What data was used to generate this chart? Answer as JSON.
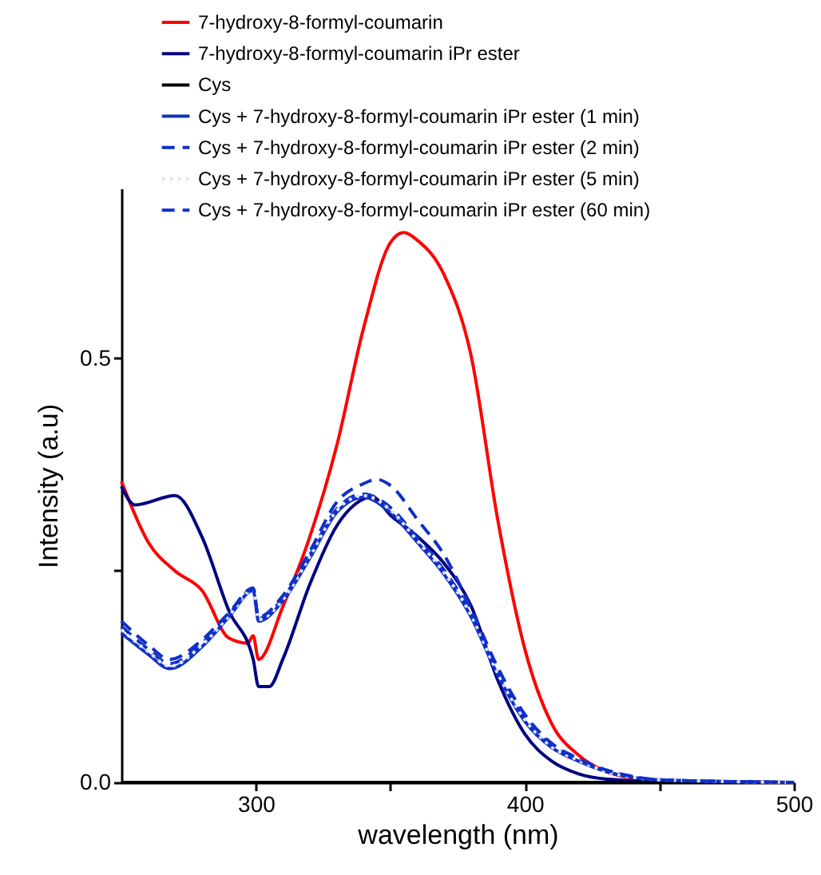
{
  "chart_data": {
    "type": "line",
    "xlabel": "wavelength (nm)",
    "ylabel": "Intensity (a.u)",
    "xlim": [
      250,
      500
    ],
    "ylim": [
      0,
      0.7
    ],
    "xticks": [
      300,
      {
        "value": 350,
        "label": null
      },
      400,
      {
        "value": 450,
        "label": null
      },
      500
    ],
    "yticks": [
      {
        "value": 0,
        "label": "0.0"
      },
      {
        "value": 0.25,
        "label": null
      },
      {
        "value": 0.5,
        "label": "0.5"
      }
    ],
    "grid": false,
    "legend": "top",
    "series": [
      {
        "name": "7-hydroxy-8-formyl-coumarin",
        "color": "#ff0000",
        "line_style": "solid",
        "x": [
          250,
          260,
          270,
          280,
          290,
          297,
          299,
          301,
          310,
          320,
          330,
          340,
          350,
          355,
          360,
          370,
          380,
          390,
          400,
          410,
          420,
          430,
          440,
          450,
          500
        ],
        "values": [
          0.355,
          0.283,
          0.249,
          0.226,
          0.17,
          0.164,
          0.173,
          0.145,
          0.207,
          0.289,
          0.396,
          0.535,
          0.636,
          0.648,
          0.639,
          0.598,
          0.503,
          0.308,
          0.157,
          0.069,
          0.032,
          0.013,
          0.005,
          0.002,
          0
        ]
      },
      {
        "name": "7-hydroxy-8-formyl-coumarin iPr ester",
        "color": "#000080",
        "line_style": "solid",
        "x": [
          250,
          255,
          270,
          280,
          290,
          299,
          301,
          305,
          310,
          320,
          330,
          340,
          343,
          350,
          360,
          370,
          380,
          390,
          400,
          410,
          420,
          430,
          450,
          500
        ],
        "values": [
          0.349,
          0.327,
          0.338,
          0.289,
          0.202,
          0.145,
          0.113,
          0.113,
          0.145,
          0.233,
          0.302,
          0.334,
          0.337,
          0.315,
          0.29,
          0.258,
          0.208,
          0.12,
          0.057,
          0.025,
          0.01,
          0.004,
          0.001,
          0
        ]
      },
      {
        "name": "Cys",
        "color": "#000000",
        "line_style": "solid",
        "x": [
          250,
          500
        ],
        "values": [
          0,
          0
        ]
      },
      {
        "name": "Cys + 7-hydroxy-8-formyl-coumarin iPr ester (1 min)",
        "color": "#1030c8",
        "line_style": "solid",
        "x": [
          250,
          260,
          268,
          280,
          290,
          299,
          301,
          310,
          320,
          330,
          340,
          350,
          360,
          370,
          380,
          390,
          400,
          410,
          420,
          430,
          440,
          450,
          500
        ],
        "values": [
          0.176,
          0.151,
          0.134,
          0.16,
          0.195,
          0.226,
          0.19,
          0.214,
          0.264,
          0.318,
          0.336,
          0.318,
          0.283,
          0.245,
          0.195,
          0.126,
          0.072,
          0.041,
          0.025,
          0.013,
          0.006,
          0.003,
          0
        ]
      },
      {
        "name": "Cys + 7-hydroxy-8-formyl-coumarin iPr ester (2 min)",
        "color": "#1030c8",
        "line_style": "dashed",
        "x": [
          250,
          260,
          268,
          280,
          290,
          299,
          301,
          310,
          320,
          330,
          340,
          350,
          360,
          370,
          380,
          390,
          400,
          410,
          420,
          430,
          440,
          450,
          500
        ],
        "values": [
          0.184,
          0.157,
          0.14,
          0.164,
          0.198,
          0.228,
          0.193,
          0.217,
          0.268,
          0.322,
          0.34,
          0.324,
          0.288,
          0.25,
          0.2,
          0.13,
          0.076,
          0.044,
          0.027,
          0.014,
          0.007,
          0.003,
          0
        ]
      },
      {
        "name": "Cys + 7-hydroxy-8-formyl-coumarin iPr ester (5 min)",
        "color": "#dce4f4",
        "line_style": "dotted",
        "x": [
          250,
          260,
          268,
          280,
          290,
          299,
          301,
          310,
          320,
          330,
          340,
          350,
          360,
          370,
          380,
          390,
          400,
          410,
          420,
          430,
          440,
          450,
          500
        ],
        "values": [
          0.18,
          0.154,
          0.137,
          0.162,
          0.196,
          0.227,
          0.192,
          0.215,
          0.266,
          0.32,
          0.338,
          0.321,
          0.285,
          0.247,
          0.197,
          0.128,
          0.074,
          0.042,
          0.026,
          0.013,
          0.006,
          0.003,
          0
        ]
      },
      {
        "name": "Cys + 7-hydroxy-8-formyl-coumarin iPr ester (60 min)",
        "color": "#1030c8",
        "line_style": "dashed",
        "x": [
          250,
          260,
          268,
          280,
          290,
          299,
          301,
          310,
          320,
          330,
          340,
          345,
          350,
          360,
          370,
          380,
          390,
          400,
          410,
          420,
          430,
          440,
          450,
          500
        ],
        "values": [
          0.19,
          0.162,
          0.145,
          0.168,
          0.2,
          0.229,
          0.195,
          0.22,
          0.272,
          0.33,
          0.352,
          0.357,
          0.35,
          0.31,
          0.268,
          0.205,
          0.135,
          0.08,
          0.046,
          0.028,
          0.015,
          0.007,
          0.003,
          0
        ]
      }
    ]
  }
}
